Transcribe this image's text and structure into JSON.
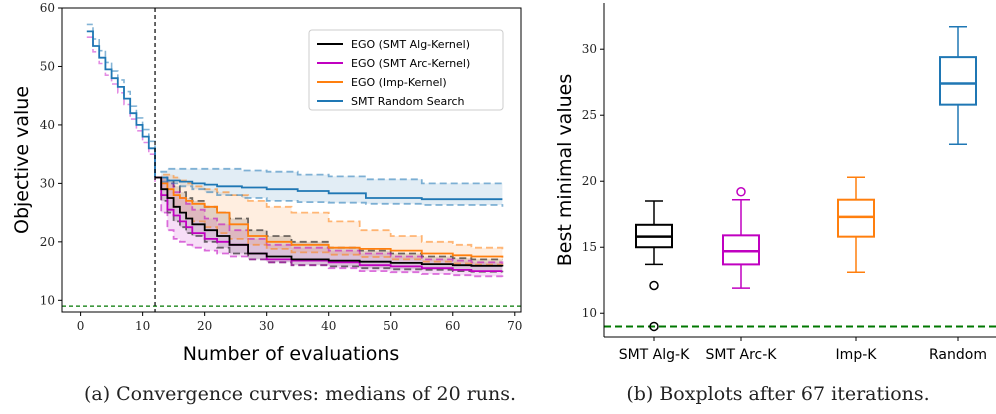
{
  "colors": {
    "alg": "#000000",
    "arc": "#c000c0",
    "imp": "#ff7f0e",
    "rand": "#1f77b4",
    "target": "#007700"
  },
  "chart_data": [
    {
      "type": "line",
      "caption": "(a) Convergence curves: medians of 20 runs.",
      "xlabel": "Number of evaluations",
      "ylabel": "Objective value",
      "xlim": [
        -3,
        71
      ],
      "ylim": [
        8,
        60
      ],
      "xticks": [
        0,
        10,
        20,
        30,
        40,
        50,
        60,
        70
      ],
      "yticks": [
        10,
        20,
        30,
        40,
        50,
        60
      ],
      "vline_x": 12,
      "target_y": 9,
      "legend_position": "top-right",
      "initial": {
        "x": [
          1,
          2,
          3,
          4,
          5,
          6,
          7,
          8,
          9,
          10,
          11,
          12
        ],
        "y": [
          56,
          53.5,
          51.5,
          49.5,
          48,
          46.5,
          44.5,
          42,
          40,
          38,
          36,
          31
        ]
      },
      "series": [
        {
          "name": "EGO (SMT Alg-Kernel)",
          "color_key": "alg",
          "x": [
            12,
            13,
            14,
            15,
            16,
            17,
            18,
            20,
            22,
            24,
            27,
            30,
            34,
            40,
            45,
            50,
            55,
            60,
            63,
            68
          ],
          "y": [
            31,
            29,
            27.5,
            26,
            25,
            24,
            23,
            22,
            21,
            19.5,
            18,
            17.5,
            17,
            16.8,
            16.6,
            16.4,
            16.2,
            16,
            15.9,
            15.8
          ],
          "q25": [
            31,
            27,
            25,
            23.5,
            22.5,
            21.5,
            21,
            20,
            19,
            18,
            17,
            16.5,
            16,
            15.8,
            15.5,
            15.3,
            15.2,
            15,
            14.9,
            14.8
          ],
          "q75": [
            31,
            31,
            30.5,
            29.5,
            28.5,
            27.5,
            27,
            26,
            25,
            24,
            22,
            21,
            20,
            19,
            18.5,
            18,
            17.5,
            17.2,
            17,
            17
          ]
        },
        {
          "name": "EGO (SMT Arc-Kernel)",
          "color_key": "arc",
          "x": [
            12,
            13,
            14,
            15,
            16,
            17,
            18,
            20,
            22,
            24,
            27,
            30,
            34,
            40,
            45,
            50,
            55,
            60,
            63,
            68
          ],
          "y": [
            31,
            28,
            25.5,
            24.5,
            23.5,
            22.5,
            21.5,
            20.5,
            20,
            19.5,
            18,
            17,
            16.8,
            16.5,
            16,
            15.8,
            15.5,
            15.2,
            15,
            15
          ],
          "q25": [
            31,
            25,
            22,
            20.5,
            20,
            19.5,
            19,
            18.5,
            18,
            17.5,
            17,
            16.5,
            16,
            15.5,
            15,
            14.8,
            14.5,
            14.3,
            14.1,
            14
          ],
          "q75": [
            31,
            31,
            30,
            28.5,
            27.5,
            26.5,
            25.5,
            24,
            23,
            22,
            20.5,
            19.5,
            19,
            18.5,
            18,
            17.5,
            17,
            16.8,
            16.5,
            16.2
          ]
        },
        {
          "name": "EGO (Imp-Kernel)",
          "color_key": "imp",
          "x": [
            12,
            13,
            14,
            15,
            16,
            17,
            18,
            20,
            22,
            24,
            27,
            30,
            34,
            40,
            45,
            50,
            55,
            60,
            63,
            68
          ],
          "y": [
            31,
            30,
            29,
            28,
            27.5,
            27,
            26.5,
            26,
            25,
            23,
            21,
            20,
            19.5,
            19,
            18.8,
            18.5,
            18,
            17.7,
            17.5,
            17.3
          ],
          "q25": [
            31,
            29,
            27.5,
            26,
            25,
            24,
            23.5,
            22.5,
            21.5,
            20.5,
            19.5,
            18.8,
            18.2,
            17.8,
            17.4,
            17,
            16.6,
            16.3,
            16.1,
            16
          ],
          "q75": [
            31,
            31.5,
            31.5,
            31,
            30.5,
            30,
            29.5,
            29,
            28.5,
            28,
            27,
            26,
            25,
            23.5,
            22,
            21,
            20,
            19.5,
            19,
            18.5
          ]
        },
        {
          "name": "SMT Random Search",
          "color_key": "rand",
          "x": [
            12,
            13,
            14,
            16,
            18,
            20,
            22,
            26,
            30,
            35,
            40,
            46,
            55,
            68
          ],
          "y": [
            31,
            31,
            30.5,
            30.3,
            30,
            29.8,
            29.5,
            29.3,
            29,
            28.7,
            28.3,
            27.5,
            27.3,
            27.3
          ],
          "q25": [
            31,
            30.3,
            30,
            29.5,
            29,
            28.5,
            28,
            27.5,
            27,
            26.8,
            26.7,
            26.5,
            26.3,
            26
          ],
          "q75": [
            31,
            32,
            32.5,
            32.5,
            32.5,
            32.5,
            32.5,
            32.2,
            32,
            31.5,
            31.2,
            30.7,
            30,
            29.5
          ]
        }
      ]
    },
    {
      "type": "box",
      "caption": "(b) Boxplots after 67 iterations.",
      "ylabel": "Best minimal values",
      "ylim": [
        8.2,
        33.5
      ],
      "yticks": [
        10,
        15,
        20,
        25,
        30
      ],
      "target_y": 9,
      "categories": [
        "SMT Alg-K",
        "SMT Arc-K",
        "Imp-K",
        "Random"
      ],
      "boxes": [
        {
          "color_key": "alg",
          "whislo": 13.7,
          "q1": 15.0,
          "med": 15.8,
          "q3": 16.7,
          "whishi": 18.5,
          "fliers": [
            12.1,
            9.0
          ]
        },
        {
          "color_key": "arc",
          "whislo": 11.9,
          "q1": 13.7,
          "med": 14.7,
          "q3": 15.9,
          "whishi": 18.6,
          "fliers": [
            19.2
          ]
        },
        {
          "color_key": "imp",
          "whislo": 13.1,
          "q1": 15.8,
          "med": 17.3,
          "q3": 18.6,
          "whishi": 20.3,
          "fliers": []
        },
        {
          "color_key": "rand",
          "whislo": 22.8,
          "q1": 25.8,
          "med": 27.4,
          "q3": 29.4,
          "whishi": 31.7,
          "fliers": []
        }
      ]
    }
  ]
}
